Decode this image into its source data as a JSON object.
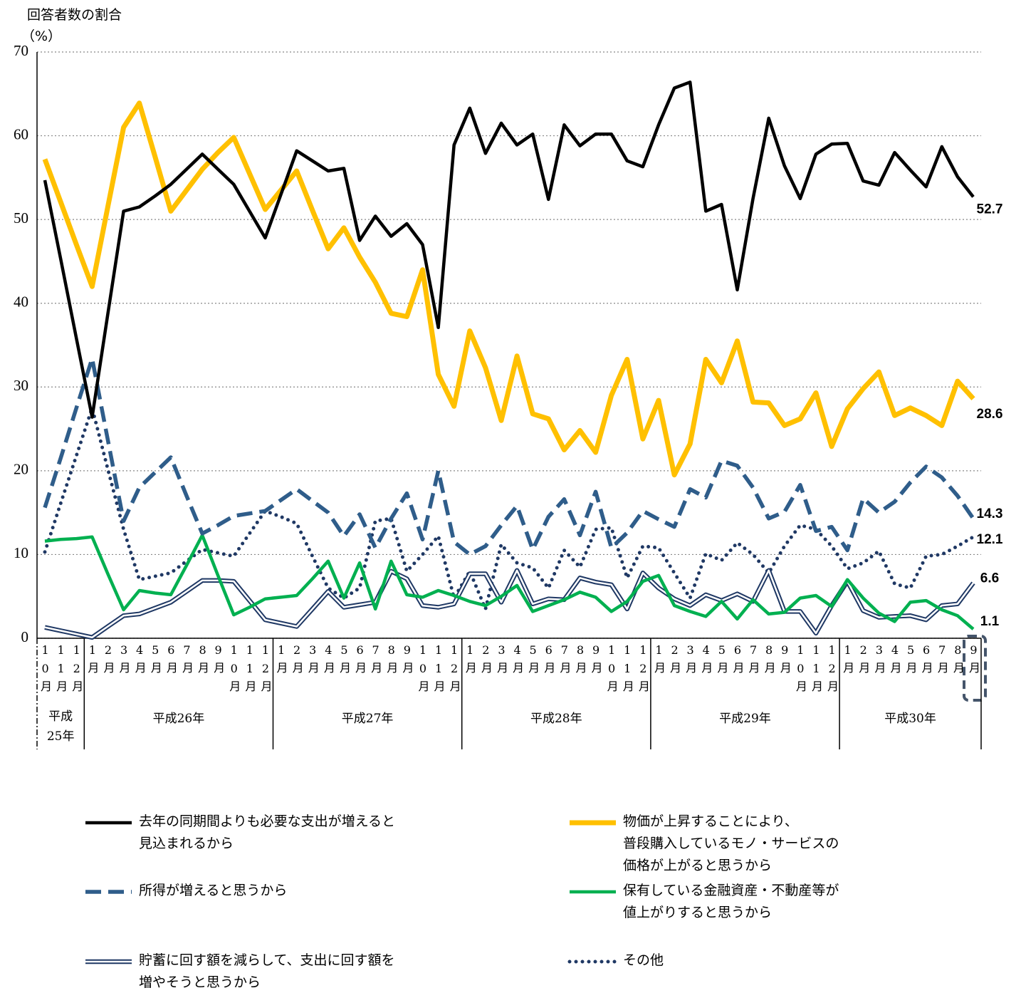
{
  "chart_data": {
    "type": "line",
    "ylabel": "回答者数の割合",
    "yunit": "（%）",
    "ylim": [
      0,
      70
    ],
    "yticks": [
      0,
      10,
      20,
      30,
      40,
      50,
      60,
      70
    ],
    "grid": true,
    "categories": [
      "10月",
      "11月",
      "12月",
      "1月",
      "2月",
      "3月",
      "4月",
      "5月",
      "6月",
      "7月",
      "8月",
      "9月",
      "10月",
      "11月",
      "12月",
      "1月",
      "2月",
      "3月",
      "4月",
      "5月",
      "6月",
      "7月",
      "8月",
      "9月",
      "10月",
      "11月",
      "12月",
      "1月",
      "2月",
      "3月",
      "4月",
      "5月",
      "6月",
      "7月",
      "8月",
      "9月",
      "10月",
      "11月",
      "12月",
      "1月",
      "2月",
      "3月",
      "4月",
      "5月",
      "6月",
      "7月",
      "8月",
      "9月",
      "10月",
      "11月",
      "12月",
      "1月",
      "2月",
      "3月",
      "4月",
      "5月",
      "6月",
      "7月",
      "8月",
      "9月"
    ],
    "year_labels": [
      "平成\n25年",
      "平成26年",
      "平成27年",
      "平成28年",
      "平成29年",
      "平成30年"
    ],
    "series": [
      {
        "name": "去年の同期間よりも必要な支出が増えると\n見込まれるから",
        "color": "#000000",
        "style": "solid",
        "values": [
          54.7,
          45.3,
          35.8,
          26.4,
          38.7,
          51.0,
          51.5,
          52.8,
          54.2,
          56.0,
          57.8,
          56.0,
          54.2,
          51.0,
          47.8,
          53.0,
          58.2,
          57.0,
          55.8,
          56.1,
          47.5,
          50.4,
          48.0,
          49.5,
          47.0,
          37.1,
          58.9,
          63.3,
          57.9,
          61.5,
          58.9,
          60.2,
          52.4,
          61.3,
          58.8,
          60.2,
          60.2,
          57.0,
          56.3,
          61.3,
          65.7,
          66.4,
          51.0,
          51.8,
          41.6,
          52.5,
          62.1,
          56.4,
          52.5,
          57.8,
          59.0,
          59.1,
          54.6,
          54.1,
          58.0,
          55.9,
          53.9,
          58.7,
          55.1,
          52.7
        ]
      },
      {
        "name": "物価が上昇することにより、\n普段購入しているモノ・サービスの\n価格が上がると思うから",
        "color": "#ffc000",
        "style": "thick",
        "values": [
          57.2,
          52.1,
          47.0,
          42.0,
          51.5,
          61.0,
          63.9,
          57.5,
          51.0,
          53.5,
          56.0,
          58.0,
          59.8,
          55.5,
          51.2,
          53.5,
          55.8,
          51.1,
          46.5,
          49.0,
          45.5,
          42.5,
          38.8,
          38.4,
          44.0,
          31.5,
          27.7,
          36.7,
          32.3,
          26.0,
          33.7,
          26.8,
          26.2,
          22.5,
          24.8,
          22.2,
          29.0,
          33.3,
          23.8,
          28.4,
          19.5,
          23.2,
          33.3,
          30.5,
          35.5,
          28.2,
          28.1,
          25.4,
          26.2,
          29.3,
          22.9,
          27.4,
          29.8,
          31.8,
          26.6,
          27.5,
          26.6,
          25.4,
          30.7,
          28.6
        ]
      },
      {
        "name": "所得が増えると思うから",
        "color": "#2f5d8a",
        "style": "dashed",
        "values": [
          15.6,
          21.5,
          27.5,
          33.4,
          23.7,
          14.0,
          18.0,
          19.8,
          21.6,
          17.0,
          12.5,
          13.5,
          14.6,
          14.9,
          15.2,
          16.5,
          17.8,
          16.4,
          15.0,
          12.2,
          14.8,
          10.8,
          14.3,
          17.3,
          11.8,
          20.0,
          11.5,
          10.0,
          11.0,
          13.5,
          15.8,
          10.6,
          14.5,
          16.6,
          12.3,
          17.5,
          10.8,
          12.6,
          15.2,
          14.2,
          13.3,
          17.8,
          16.8,
          21.2,
          20.6,
          18.0,
          14.3,
          15.1,
          18.3,
          12.8,
          13.3,
          10.5,
          16.7,
          15.0,
          16.3,
          18.6,
          20.5,
          19.2,
          17.0,
          14.3
        ]
      },
      {
        "name": "保有している金融資産・不動産等が\n値上がりすると思うから",
        "color": "#00b050",
        "style": "solid",
        "values": [
          11.6,
          11.8,
          11.9,
          12.1,
          7.7,
          3.4,
          5.7,
          5.4,
          5.2,
          8.7,
          12.3,
          7.5,
          2.8,
          3.7,
          4.7,
          4.9,
          5.1,
          7.1,
          9.2,
          4.8,
          9.0,
          3.5,
          9.2,
          5.2,
          4.9,
          5.7,
          5.1,
          4.4,
          3.9,
          5.0,
          6.3,
          3.2,
          3.9,
          4.6,
          5.5,
          4.9,
          3.2,
          4.4,
          6.8,
          7.5,
          3.9,
          3.2,
          2.6,
          4.4,
          2.3,
          4.6,
          2.9,
          3.1,
          4.8,
          5.1,
          3.8,
          7.0,
          4.8,
          3.0,
          2.0,
          4.3,
          4.5,
          3.4,
          2.7,
          1.1
        ]
      },
      {
        "name": "貯蓄に回す額を減らして、支出に回す額を\n増やそうと思うから",
        "color": "#1f3864",
        "style": "double",
        "values": [
          1.3,
          0.9,
          0.5,
          0.1,
          1.4,
          2.7,
          2.9,
          3.6,
          4.3,
          5.6,
          6.9,
          6.9,
          6.8,
          4.5,
          2.2,
          1.8,
          1.4,
          3.5,
          5.6,
          3.7,
          4.0,
          4.3,
          8.0,
          7.1,
          3.9,
          3.7,
          4.1,
          7.7,
          7.7,
          4.3,
          8.1,
          4.1,
          4.7,
          4.6,
          7.2,
          6.7,
          6.4,
          3.5,
          7.8,
          6.0,
          4.7,
          3.9,
          5.2,
          4.5,
          5.3,
          4.4,
          8.1,
          3.2,
          3.2,
          0.6,
          3.9,
          6.8,
          3.3,
          2.5,
          2.6,
          2.7,
          2.2,
          3.9,
          4.1,
          6.6
        ]
      },
      {
        "name": "その他",
        "color": "#1f3864",
        "style": "dotted",
        "values": [
          10.3,
          16.1,
          21.8,
          27.5,
          20.2,
          13.0,
          7.0,
          7.4,
          7.8,
          9.2,
          10.6,
          10.2,
          9.8,
          12.5,
          15.2,
          14.5,
          13.7,
          9.8,
          6.0,
          4.8,
          6.0,
          14.0,
          14.3,
          8.0,
          10.0,
          12.2,
          4.8,
          8.0,
          3.5,
          11.2,
          9.0,
          8.4,
          6.0,
          10.5,
          8.5,
          13.0,
          13.2,
          7.2,
          11.0,
          10.8,
          7.8,
          4.8,
          10.1,
          9.3,
          11.4,
          10.0,
          7.8,
          11.0,
          13.5,
          13.0,
          11.0,
          8.3,
          9.0,
          10.4,
          6.5,
          6.0,
          9.8,
          10.0,
          11.0,
          12.1
        ]
      }
    ]
  }
}
